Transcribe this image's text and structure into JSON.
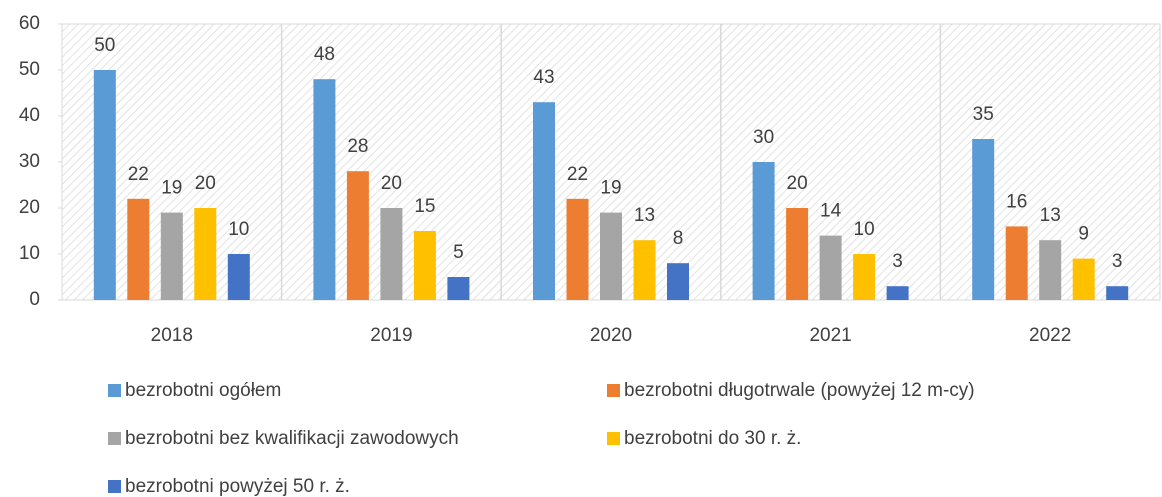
{
  "chart_data": {
    "type": "bar",
    "categories": [
      "2018",
      "2019",
      "2020",
      "2021",
      "2022"
    ],
    "series": [
      {
        "name": "bezrobotni ogółem",
        "color": "#5b9bd5",
        "values": [
          50,
          48,
          43,
          30,
          35
        ]
      },
      {
        "name": "bezrobotni długotrwale (powyżej 12 m-cy)",
        "color": "#ed7d31",
        "values": [
          22,
          28,
          22,
          20,
          16
        ]
      },
      {
        "name": "bezrobotni bez kwalifikacji zawodowych",
        "color": "#a5a5a5",
        "values": [
          19,
          20,
          19,
          14,
          13
        ]
      },
      {
        "name": "bezrobotni do 30 r. ż.",
        "color": "#ffc000",
        "values": [
          20,
          15,
          13,
          10,
          9
        ]
      },
      {
        "name": "bezrobotni powyżej 50 r. ż.",
        "color": "#4472c4",
        "values": [
          10,
          5,
          8,
          3,
          3
        ]
      }
    ],
    "ylim": [
      0,
      60
    ],
    "yticks": [
      0,
      10,
      20,
      30,
      40,
      50,
      60
    ],
    "legend": "bottom"
  }
}
